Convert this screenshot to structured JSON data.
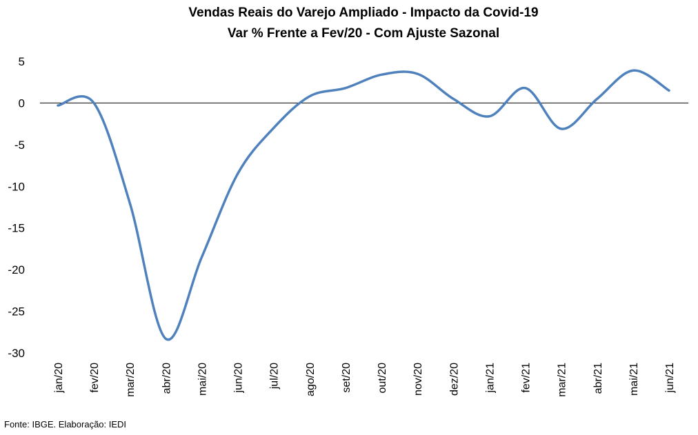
{
  "chart_data": {
    "type": "line",
    "title": "Vendas Reais do Varejo Ampliado - Impacto da Covid-19",
    "subtitle": "Var % Frente a Fev/20 - Com Ajuste Sazonal",
    "xlabel": "",
    "ylabel": "",
    "ylim": [
      -30,
      5
    ],
    "yticks": [
      5,
      0,
      -5,
      -10,
      -15,
      -20,
      -25,
      -30
    ],
    "grid": false,
    "legend": "none",
    "line_color": "#4F81BD",
    "categories": [
      "jan/20",
      "fev/20",
      "mar/20",
      "abr/20",
      "mai/20",
      "jun/20",
      "jul/20",
      "ago/20",
      "set/20",
      "out/20",
      "nov/20",
      "dez/20",
      "jan/21",
      "fev/21",
      "mar/21",
      "abr/21",
      "mai/21",
      "jun/21"
    ],
    "series": [
      {
        "values": [
          -0.3,
          0.0,
          -12.0,
          -28.3,
          -18.5,
          -8.5,
          -3.0,
          0.8,
          1.8,
          3.4,
          3.5,
          0.5,
          -1.6,
          1.8,
          -3.1,
          0.5,
          3.9,
          1.5
        ]
      }
    ]
  },
  "source": "Fonte: IBGE. Elaboração: IEDI"
}
